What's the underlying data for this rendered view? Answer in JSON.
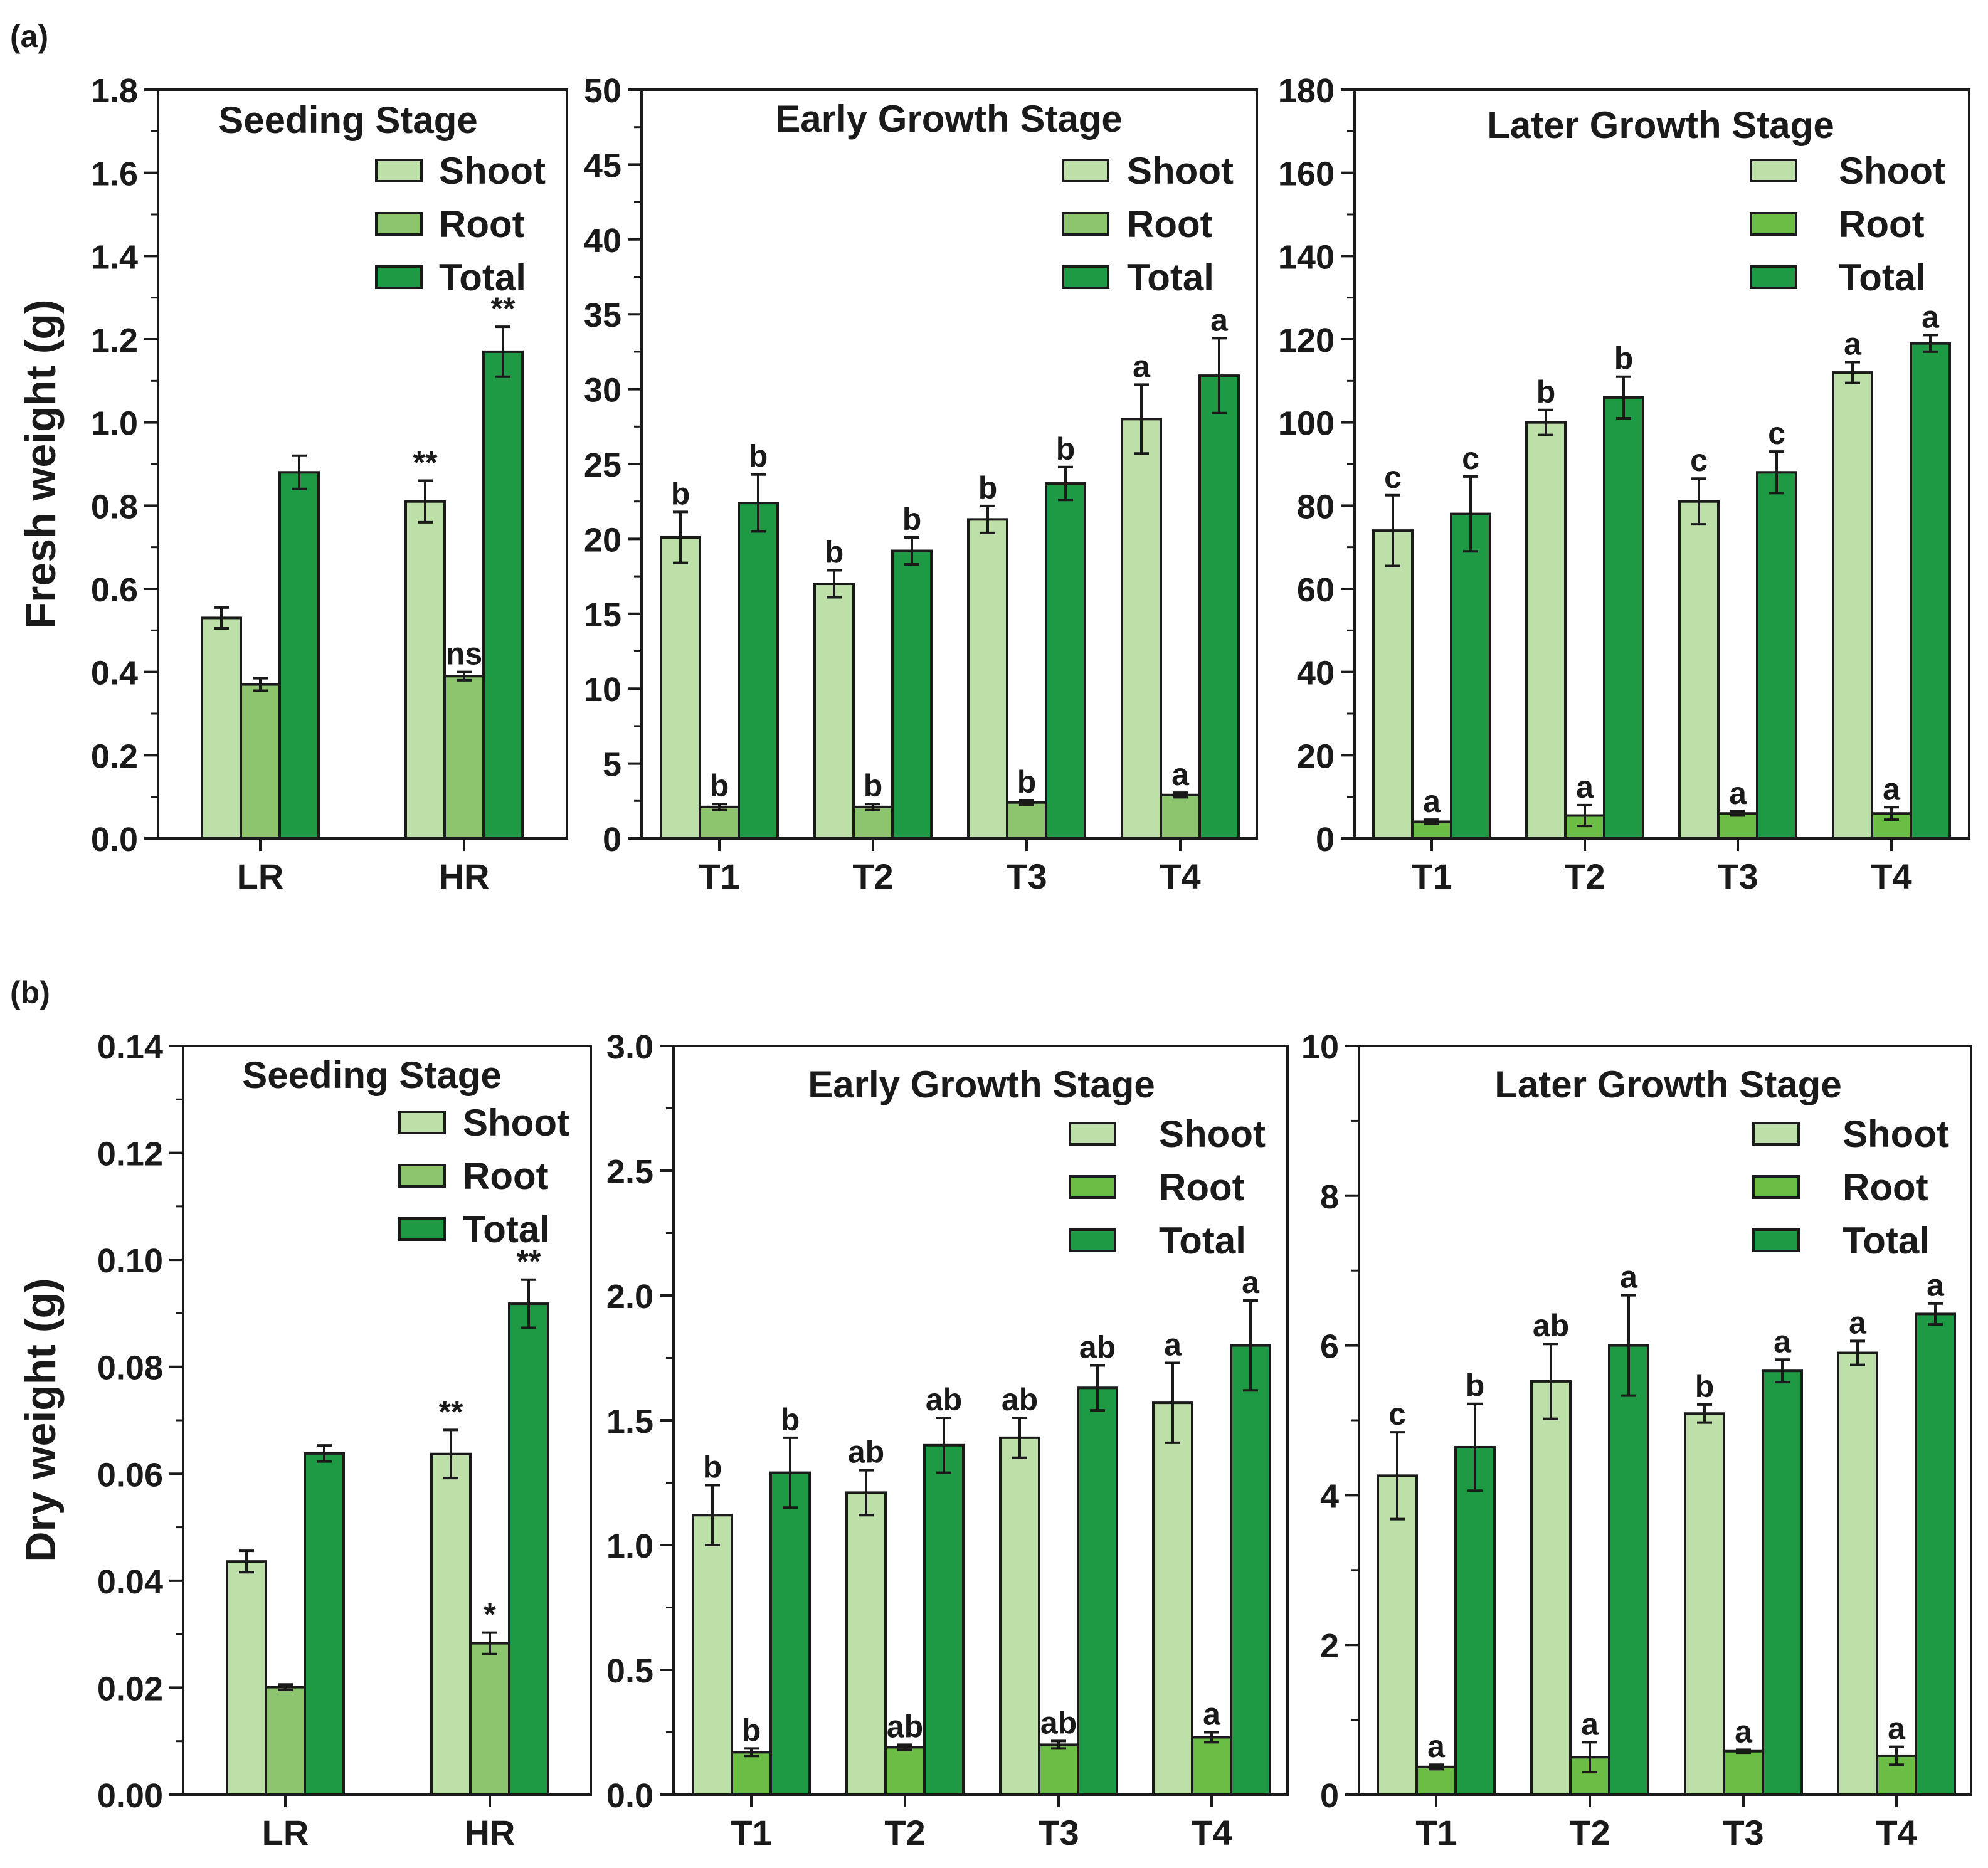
{
  "panel_labels": [
    "(a)",
    "(b)"
  ],
  "row_ylabels": [
    "Fresh weight (g)",
    "Dry weight (g)"
  ],
  "colors": {
    "shoot": "#bde0a8",
    "root_seeding": "#8cc56d",
    "root_growth": "#6cbd45",
    "total": "#1e9a44",
    "axis": "#1a1a1a",
    "background": "#ffffff"
  },
  "chart_data": [
    {
      "type": "bar",
      "title": "Seeding Stage",
      "ylabel": "Fresh weight (g)",
      "categories": [
        "LR",
        "HR"
      ],
      "ylim": [
        0,
        1.8
      ],
      "yticks": [
        "0.0",
        "0.2",
        "0.4",
        "0.6",
        "0.8",
        "1.0",
        "1.2",
        "1.4",
        "1.6",
        "1.8"
      ],
      "legend": [
        "Shoot",
        "Root",
        "Total"
      ],
      "legend_position": "top-right",
      "series": [
        {
          "name": "Shoot",
          "color": "#bde0a8",
          "values": [
            0.53,
            0.81
          ],
          "errors": [
            0.025,
            0.05
          ],
          "labels": [
            "",
            "**"
          ]
        },
        {
          "name": "Root",
          "color": "#8cc56d",
          "values": [
            0.37,
            0.39
          ],
          "errors": [
            0.015,
            0.01
          ],
          "labels": [
            "",
            "ns"
          ]
        },
        {
          "name": "Total",
          "color": "#1e9a44",
          "values": [
            0.88,
            1.17
          ],
          "errors": [
            0.04,
            0.06
          ],
          "labels": [
            "",
            "**"
          ]
        }
      ]
    },
    {
      "type": "bar",
      "title": "Early Growth Stage",
      "categories": [
        "T1",
        "T2",
        "T3",
        "T4"
      ],
      "ylim": [
        0,
        50
      ],
      "yticks": [
        "0",
        "5",
        "10",
        "15",
        "20",
        "25",
        "30",
        "35",
        "40",
        "45",
        "50"
      ],
      "legend": [
        "Shoot",
        "Root",
        "Total"
      ],
      "legend_position": "top-right",
      "series": [
        {
          "name": "Shoot",
          "color": "#bde0a8",
          "values": [
            20.1,
            17.0,
            21.3,
            28.0
          ],
          "errors": [
            1.7,
            0.9,
            0.9,
            2.3
          ],
          "labels": [
            "b",
            "b",
            "b",
            "a"
          ]
        },
        {
          "name": "Root",
          "color": "#8cc56d",
          "values": [
            2.1,
            2.1,
            2.4,
            2.9
          ],
          "errors": [
            0.2,
            0.2,
            0.15,
            0.15
          ],
          "labels": [
            "b",
            "b",
            "b",
            "a"
          ]
        },
        {
          "name": "Total",
          "color": "#1e9a44",
          "values": [
            22.4,
            19.2,
            23.7,
            30.9
          ],
          "errors": [
            1.9,
            0.9,
            1.1,
            2.5
          ],
          "labels": [
            "b",
            "b",
            "b",
            "a"
          ]
        }
      ]
    },
    {
      "type": "bar",
      "title": "Later Growth Stage",
      "categories": [
        "T1",
        "T2",
        "T3",
        "T4"
      ],
      "ylim": [
        0,
        180
      ],
      "yticks": [
        "0",
        "20",
        "40",
        "60",
        "80",
        "100",
        "120",
        "140",
        "160",
        "180"
      ],
      "legend": [
        "Shoot",
        "Root",
        "Total"
      ],
      "legend_position": "top-right",
      "series": [
        {
          "name": "Shoot",
          "color": "#bde0a8",
          "values": [
            74,
            100,
            81,
            112
          ],
          "errors": [
            8.5,
            3,
            5.5,
            2.5
          ],
          "labels": [
            "c",
            "b",
            "c",
            "a"
          ]
        },
        {
          "name": "Root",
          "color": "#6cbd45",
          "values": [
            4,
            5.5,
            6,
            6
          ],
          "errors": [
            0.5,
            2.5,
            0.5,
            1.5
          ],
          "labels": [
            "a",
            "a",
            "a",
            "a"
          ]
        },
        {
          "name": "Total",
          "color": "#1e9a44",
          "values": [
            78,
            106,
            88,
            119
          ],
          "errors": [
            9,
            5,
            5,
            2
          ],
          "labels": [
            "c",
            "b",
            "c",
            "a"
          ]
        }
      ]
    },
    {
      "type": "bar",
      "title": "Seeding Stage",
      "ylabel": "Dry weight (g)",
      "categories": [
        "LR",
        "HR"
      ],
      "ylim": [
        0,
        0.14
      ],
      "yticks": [
        "0.00",
        "0.02",
        "0.04",
        "0.06",
        "0.08",
        "0.10",
        "0.12",
        "0.14"
      ],
      "legend": [
        "Shoot",
        "Root",
        "Total"
      ],
      "legend_position": "top-right",
      "series": [
        {
          "name": "Shoot",
          "color": "#bde0a8",
          "values": [
            0.0436,
            0.0637
          ],
          "errors": [
            0.002,
            0.0045
          ],
          "labels": [
            "",
            "**"
          ]
        },
        {
          "name": "Root",
          "color": "#8cc56d",
          "values": [
            0.0201,
            0.0283
          ],
          "errors": [
            0.0005,
            0.002
          ],
          "labels": [
            "",
            "*"
          ]
        },
        {
          "name": "Total",
          "color": "#1e9a44",
          "values": [
            0.0638,
            0.0918
          ],
          "errors": [
            0.0015,
            0.0045
          ],
          "labels": [
            "",
            "**"
          ]
        }
      ]
    },
    {
      "type": "bar",
      "title": "Early Growth Stage",
      "categories": [
        "T1",
        "T2",
        "T3",
        "T4"
      ],
      "ylim": [
        0,
        3.0
      ],
      "yticks": [
        "0.0",
        "0.5",
        "1.0",
        "1.5",
        "2.0",
        "2.5",
        "3.0"
      ],
      "legend": [
        "Shoot",
        "Root",
        "Total"
      ],
      "legend_position": "top-right",
      "series": [
        {
          "name": "Shoot",
          "color": "#bde0a8",
          "values": [
            1.12,
            1.21,
            1.43,
            1.57
          ],
          "errors": [
            0.12,
            0.09,
            0.08,
            0.16
          ],
          "labels": [
            "b",
            "ab",
            "ab",
            "a"
          ]
        },
        {
          "name": "Root",
          "color": "#6cbd45",
          "values": [
            0.17,
            0.19,
            0.2,
            0.23
          ],
          "errors": [
            0.015,
            0.01,
            0.015,
            0.02
          ],
          "labels": [
            "b",
            "ab",
            "ab",
            "a"
          ]
        },
        {
          "name": "Total",
          "color": "#1e9a44",
          "values": [
            1.29,
            1.4,
            1.63,
            1.8
          ],
          "errors": [
            0.14,
            0.11,
            0.09,
            0.18
          ],
          "labels": [
            "b",
            "ab",
            "ab",
            "a"
          ]
        }
      ]
    },
    {
      "type": "bar",
      "title": "Later Growth Stage",
      "categories": [
        "T1",
        "T2",
        "T3",
        "T4"
      ],
      "ylim": [
        0,
        10
      ],
      "yticks": [
        "0",
        "2",
        "4",
        "6",
        "8",
        "10"
      ],
      "legend": [
        "Shoot",
        "Root",
        "Total"
      ],
      "legend_position": "top-right",
      "series": [
        {
          "name": "Shoot",
          "color": "#bde0a8",
          "values": [
            4.26,
            5.52,
            5.09,
            5.9
          ],
          "errors": [
            0.58,
            0.5,
            0.12,
            0.16
          ],
          "labels": [
            "c",
            "ab",
            "b",
            "a"
          ]
        },
        {
          "name": "Root",
          "color": "#6cbd45",
          "values": [
            0.37,
            0.5,
            0.58,
            0.52
          ],
          "errors": [
            0.03,
            0.2,
            0.02,
            0.12
          ],
          "labels": [
            "a",
            "a",
            "a",
            "a"
          ]
        },
        {
          "name": "Total",
          "color": "#1e9a44",
          "values": [
            4.64,
            6.0,
            5.66,
            6.42
          ],
          "errors": [
            0.58,
            0.67,
            0.15,
            0.14
          ],
          "labels": [
            "b",
            "a",
            "a",
            "a"
          ]
        }
      ]
    }
  ]
}
